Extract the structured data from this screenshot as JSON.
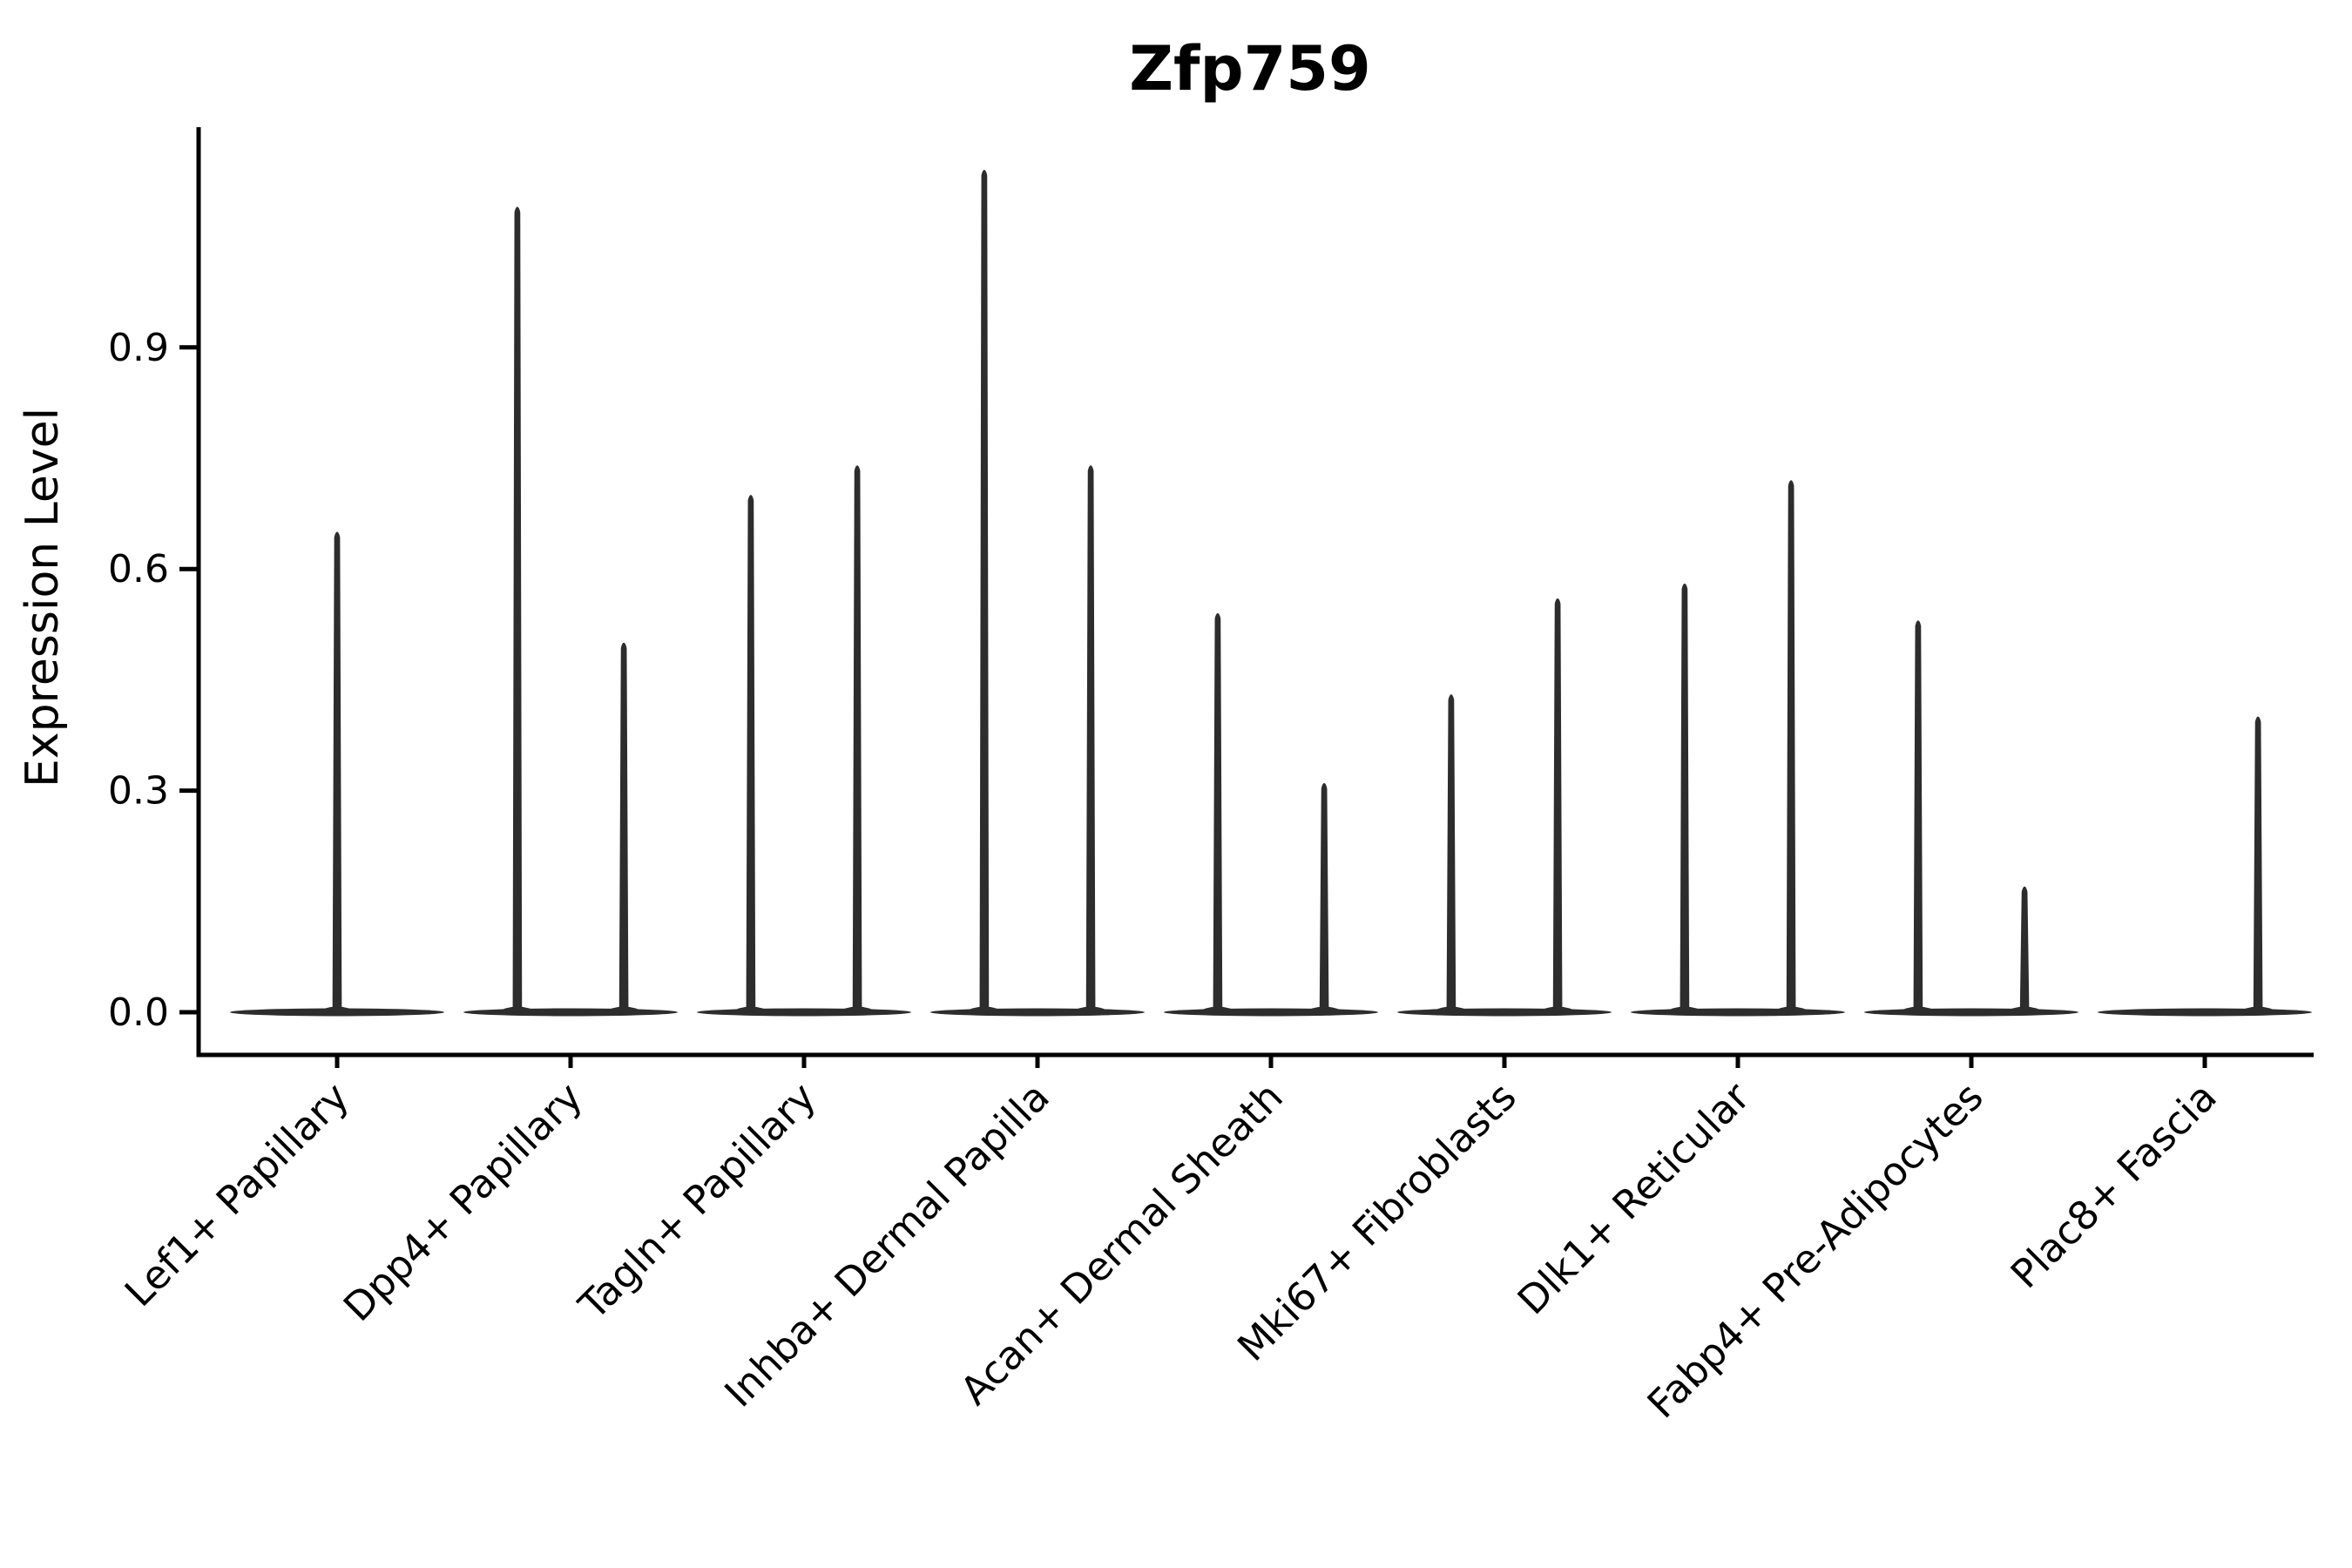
{
  "chart_data": {
    "type": "violin",
    "title": "Zfp759",
    "xlabel": "",
    "ylabel": "Expression Level",
    "grid": false,
    "legend": null,
    "ylim": [
      -0.06,
      1.2
    ],
    "yticks": [
      0.0,
      0.3,
      0.6,
      0.9
    ],
    "ytick_labels": [
      "0.0",
      "0.3",
      "0.6",
      "0.9"
    ],
    "categories": [
      "Lef1+ Papillary",
      "Dpp4+ Papillary",
      "Tagln+ Papillary",
      "Inhba+ Dermal Papilla",
      "Acan+ Dermal Sheath",
      "Mki67+ Fibroblasts",
      "Dlk1+ Reticular",
      "Fabp4+ Pre-Adipocytes",
      "Plac8+ Fascia"
    ],
    "violins": [
      {
        "category": "Lef1+ Papillary",
        "spikes": [
          {
            "offset": 0,
            "peak": 0.65
          }
        ]
      },
      {
        "category": "Dpp4+ Papillary",
        "spikes": [
          {
            "offset": -0.228,
            "peak": 1.09
          },
          {
            "offset": 0.228,
            "peak": 0.5
          }
        ]
      },
      {
        "category": "Tagln+ Papillary",
        "spikes": [
          {
            "offset": -0.228,
            "peak": 0.7
          },
          {
            "offset": 0.228,
            "peak": 0.74
          }
        ]
      },
      {
        "category": "Inhba+ Dermal Papilla",
        "spikes": [
          {
            "offset": -0.228,
            "peak": 1.14
          },
          {
            "offset": 0.228,
            "peak": 0.74
          }
        ]
      },
      {
        "category": "Acan+ Dermal Sheath",
        "spikes": [
          {
            "offset": -0.228,
            "peak": 0.54
          },
          {
            "offset": 0.228,
            "peak": 0.31
          }
        ]
      },
      {
        "category": "Mki67+ Fibroblasts",
        "spikes": [
          {
            "offset": -0.228,
            "peak": 0.43
          },
          {
            "offset": 0.228,
            "peak": 0.56
          }
        ]
      },
      {
        "category": "Dlk1+ Reticular",
        "spikes": [
          {
            "offset": -0.228,
            "peak": 0.58
          },
          {
            "offset": 0.228,
            "peak": 0.72
          }
        ]
      },
      {
        "category": "Fabp4+ Pre-Adipocytes",
        "spikes": [
          {
            "offset": -0.228,
            "peak": 0.53
          },
          {
            "offset": 0.228,
            "peak": 0.17
          }
        ]
      },
      {
        "category": "Plac8+ Fascia",
        "spikes": [
          {
            "offset": 0.228,
            "peak": 0.4
          }
        ]
      }
    ],
    "colors": {
      "ink": "#000000",
      "violin": "#2d2d2d",
      "background": "#ffffff"
    }
  }
}
